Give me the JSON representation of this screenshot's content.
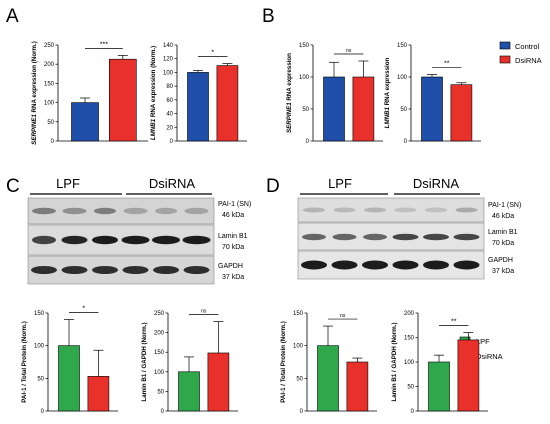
{
  "colors": {
    "control": "#1f4fa8",
    "dsirna": "#e8312b",
    "lpf": "#2ea84a",
    "dsirna2": "#e8312b"
  },
  "panels": {
    "A": "A",
    "B": "B",
    "C": "C",
    "D": "D"
  },
  "legend_ab": [
    "Control",
    "DsiRNA"
  ],
  "legend_cd": [
    "LPF",
    "DsiRNA"
  ],
  "blots": {
    "C": {
      "groups": [
        "LPF",
        "DsiRNA"
      ],
      "labels": [
        {
          "name": "PAI-1 (SN)",
          "size": "46 kDa"
        },
        {
          "name": "Lamin B1",
          "size": "70 kDa"
        },
        {
          "name": "GAPDH",
          "size": "37 kDa"
        }
      ]
    },
    "D": {
      "groups": [
        "LPF",
        "DsiRNA"
      ],
      "labels": [
        {
          "name": "PAI-1 (SN)",
          "size": "46 kDa"
        },
        {
          "name": "Lamin B1",
          "size": "70 kDa"
        },
        {
          "name": "GAPDH",
          "size": "37 kDa"
        }
      ]
    }
  },
  "chart_data": [
    {
      "id": "A1",
      "type": "bar",
      "ylabel_italic": "SERPINE1",
      "ylabel_rest": " RNA expression (Norm.)",
      "yticks": [
        "0",
        "50",
        "100",
        "150",
        "200",
        "250"
      ],
      "ylim": [
        0,
        250
      ],
      "categories": [
        "Control",
        "DsiRNA"
      ],
      "values": [
        100,
        213
      ],
      "errors": [
        12,
        10
      ],
      "significance": "***"
    },
    {
      "id": "A2",
      "type": "bar",
      "ylabel_italic": "LMNB1",
      "ylabel_rest": " RNA expression (Norm.)",
      "yticks": [
        "0",
        "20",
        "40",
        "60",
        "80",
        "100",
        "120",
        "140"
      ],
      "ylim": [
        0,
        140
      ],
      "categories": [
        "Control",
        "DsiRNA"
      ],
      "values": [
        100,
        110
      ],
      "errors": [
        3,
        3
      ],
      "significance": "*"
    },
    {
      "id": "B1",
      "type": "bar",
      "ylabel_italic": "SERPINE1",
      "ylabel_rest": " RNA expression",
      "yticks": [
        "0",
        "50",
        "100",
        "150"
      ],
      "ylim": [
        0,
        150
      ],
      "categories": [
        "Control",
        "DsiRNA"
      ],
      "values": [
        100,
        100
      ],
      "errors": [
        23,
        25
      ],
      "significance": "ns"
    },
    {
      "id": "B2",
      "type": "bar",
      "ylabel_italic": "LMNB1",
      "ylabel_rest": " RNA expression",
      "yticks": [
        "0",
        "50",
        "100",
        "150"
      ],
      "ylim": [
        0,
        150
      ],
      "categories": [
        "Control",
        "DsiRNA"
      ],
      "values": [
        100,
        88
      ],
      "errors": [
        4,
        3
      ],
      "significance": "**"
    },
    {
      "id": "C1",
      "type": "bar",
      "ylabel_italic": "",
      "ylabel_rest": "PAI-1 / Total Protein (Norm.)",
      "yticks": [
        "0",
        "50",
        "100",
        "150"
      ],
      "ylim": [
        0,
        150
      ],
      "categories": [
        "LPF",
        "DsiRNA"
      ],
      "values": [
        100,
        53
      ],
      "errors": [
        40,
        40
      ],
      "significance": "*"
    },
    {
      "id": "C2",
      "type": "bar",
      "ylabel_italic": "",
      "ylabel_rest": "Lamin B1 / GAPDH (Norm.)",
      "yticks": [
        "0",
        "50",
        "100",
        "150",
        "200",
        "250"
      ],
      "ylim": [
        0,
        250
      ],
      "categories": [
        "LPF",
        "DsiRNA"
      ],
      "values": [
        100,
        148
      ],
      "errors": [
        38,
        80
      ],
      "significance": "ns"
    },
    {
      "id": "D1",
      "type": "bar",
      "ylabel_italic": "",
      "ylabel_rest": "PAI-1 / Total Protein (Norm.)",
      "yticks": [
        "0",
        "50",
        "100",
        "150"
      ],
      "ylim": [
        0,
        150
      ],
      "categories": [
        "LPF",
        "DsiRNA"
      ],
      "values": [
        100,
        75
      ],
      "errors": [
        30,
        6
      ],
      "significance": "ns"
    },
    {
      "id": "D2",
      "type": "bar",
      "ylabel_italic": "",
      "ylabel_rest": "Lamin B1 / GAPDH (Norm.)",
      "yticks": [
        "0",
        "50",
        "100",
        "150",
        "200"
      ],
      "ylim": [
        0,
        200
      ],
      "categories": [
        "LPF",
        "DsiRNA"
      ],
      "values": [
        100,
        145
      ],
      "errors": [
        14,
        15
      ],
      "significance": "**"
    }
  ]
}
